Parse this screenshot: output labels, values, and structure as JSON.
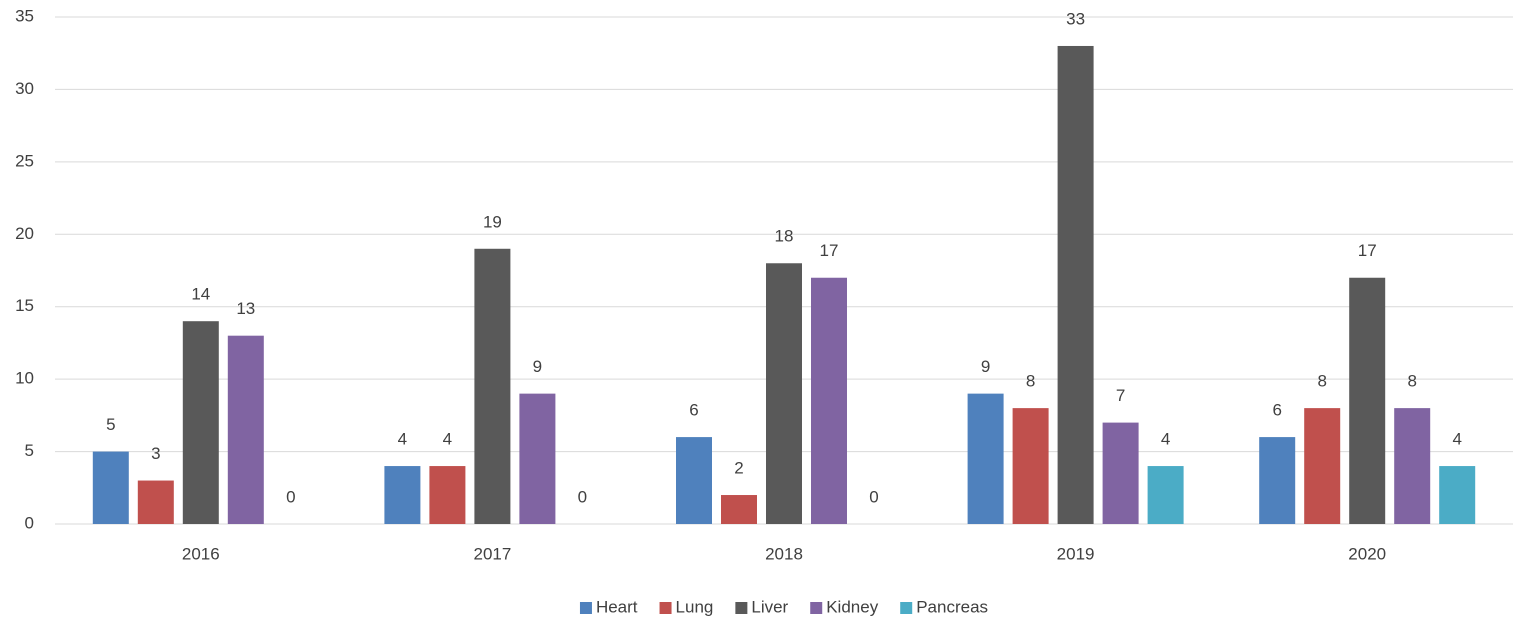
{
  "chart_data": {
    "type": "bar",
    "categories": [
      "2016",
      "2017",
      "2018",
      "2019",
      "2020"
    ],
    "series": [
      {
        "name": "Heart",
        "color": "#4f81bd",
        "values": [
          5,
          4,
          6,
          9,
          6
        ]
      },
      {
        "name": "Lung",
        "color": "#c0504d",
        "values": [
          3,
          4,
          2,
          8,
          8
        ]
      },
      {
        "name": "Liver",
        "color": "#595959",
        "values": [
          14,
          19,
          18,
          33,
          17
        ]
      },
      {
        "name": "Kidney",
        "color": "#8064a2",
        "values": [
          13,
          9,
          17,
          7,
          8
        ]
      },
      {
        "name": "Pancreas",
        "color": "#4bacc6",
        "values": [
          0,
          0,
          0,
          4,
          4
        ]
      }
    ],
    "ylim": [
      0,
      35
    ],
    "yticks": [
      0,
      5,
      10,
      15,
      20,
      25,
      30,
      35
    ],
    "grid": true,
    "legend": "bottom"
  }
}
